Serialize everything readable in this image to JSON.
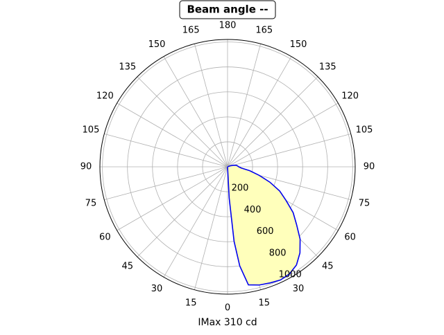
{
  "chart_data": {
    "type": "polar-line",
    "title": "Beam angle --",
    "x_label": "IMax 310 cd",
    "x": [
      0,
      3,
      5,
      7,
      10,
      15,
      20,
      25,
      30,
      35,
      40,
      45,
      50,
      55,
      60,
      65,
      70,
      75,
      80,
      85,
      90,
      95,
      100,
      105,
      110,
      120
    ],
    "series": [
      {
        "color": "#0000ee",
        "fill": "#ffffbb",
        "values": [
          0,
          250,
          600,
          800,
          960,
          980,
          990,
          1000,
          990,
          960,
          900,
          820,
          720,
          640,
          540,
          460,
          360,
          260,
          180,
          110,
          90,
          80,
          70,
          50,
          20,
          0
        ]
      }
    ],
    "xticks": [
      0,
      15,
      30,
      45,
      60,
      75,
      90,
      105,
      120,
      135,
      150,
      165,
      180,
      {
        "value": 195,
        "label": "165"
      },
      {
        "value": 210,
        "label": "150"
      },
      {
        "value": 225,
        "label": "135"
      },
      {
        "value": 240,
        "label": "120"
      },
      {
        "value": 255,
        "label": "105"
      },
      {
        "value": 270,
        "label": "90"
      },
      {
        "value": 285,
        "label": "75"
      },
      {
        "value": 300,
        "label": "60"
      },
      {
        "value": 315,
        "label": "45"
      },
      {
        "value": 330,
        "label": "30"
      },
      {
        "value": 345,
        "label": "15"
      }
    ],
    "ylim": [
      0,
      1020
    ],
    "yticks": [
      200,
      400,
      600,
      800,
      1000
    ],
    "grid": true
  }
}
